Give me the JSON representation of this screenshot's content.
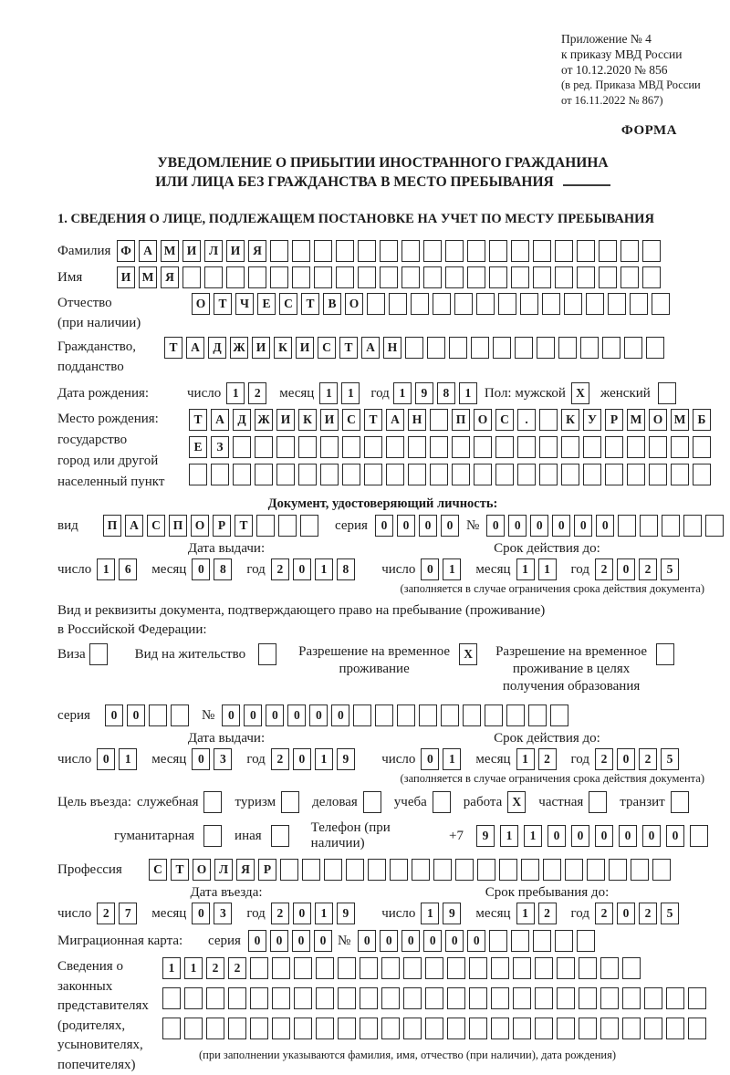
{
  "header": {
    "lines": [
      "Приложение № 4",
      "к приказу МВД России",
      "от 10.12.2020 № 856"
    ],
    "lines_small": [
      "(в ред. Приказа МВД России",
      "от 16.11.2022 № 867)"
    ],
    "form_label": "ФОРМА"
  },
  "title": {
    "line1": "УВЕДОМЛЕНИЕ О ПРИБЫТИИ ИНОСТРАННОГО ГРАЖДАНИНА",
    "line2": "ИЛИ ЛИЦА БЕЗ ГРАЖДАНСТВА В МЕСТО ПРЕБЫВАНИЯ"
  },
  "section1": "1. СВЕДЕНИЯ О ЛИЦЕ, ПОДЛЕЖАЩЕМ ПОСТАНОВКЕ НА УЧЕТ ПО МЕСТУ ПРЕБЫВАНИЯ",
  "rows": {
    "surname": {
      "label": "Фамилия",
      "value": "ФАМИЛИЯ",
      "cells": 25
    },
    "name": {
      "label": "Имя",
      "value": "ИМЯ",
      "cells": 25
    },
    "patronymic": {
      "label1": "Отчество",
      "label2": "(при наличии)",
      "value": "ОТЧЕСТВО",
      "cells": 22
    },
    "citizenship": {
      "label1": "Гражданство,",
      "label2": "подданство",
      "value": "ТАДЖИКИСТАН",
      "cells": 23
    }
  },
  "birth_date": {
    "label": "Дата рождения:",
    "day_label": "число",
    "day": {
      "value": "12",
      "cells": 2
    },
    "month_label": "месяц",
    "month": {
      "value": "11",
      "cells": 2
    },
    "year_label": "год",
    "year": {
      "value": "1981",
      "cells": 4
    },
    "sex_label": "Пол: мужской",
    "male_check": "X",
    "female_label": "женский",
    "female_check": ""
  },
  "birth_place": {
    "labels": [
      "Место рождения:",
      "государство",
      "город или другой",
      "населенный пункт"
    ],
    "row1": {
      "value": "ТАДЖИКИСТАН ПОС. КУРМОМБ",
      "cells": 24
    },
    "row2": {
      "value": "ЕЗ",
      "cells": 24
    },
    "row3": {
      "value": "",
      "cells": 24
    }
  },
  "identity_doc": {
    "heading": "Документ, удостоверяющий личность:",
    "vid_label": "вид",
    "vid": {
      "value": "ПАСПОРТ",
      "cells": 10
    },
    "seriya_label": "серия",
    "seriya": {
      "value": "0000",
      "cells": 4
    },
    "num_label": "№",
    "num": {
      "value": "000000",
      "cells": 11
    }
  },
  "issue1": {
    "head_left": "Дата выдачи:",
    "head_right": "Срок действия до:",
    "day_label": "число",
    "month_label": "месяц",
    "year_label": "год",
    "day": {
      "value": "16",
      "cells": 2
    },
    "month": {
      "value": "08",
      "cells": 2
    },
    "year": {
      "value": "2018",
      "cells": 4
    },
    "r_day": {
      "value": "01",
      "cells": 2
    },
    "r_month": {
      "value": "11",
      "cells": 2
    },
    "r_year": {
      "value": "2025",
      "cells": 4
    },
    "note": "(заполняется в случае ограничения срока действия документа)"
  },
  "resident_doc": {
    "line1": "Вид и реквизиты документа, подтверждающего право на пребывание (проживание)",
    "line2": "в Российской Федерации:",
    "visa_label": "Виза",
    "visa_check": "",
    "vzh_label": "Вид на жительство",
    "vzh_check": "",
    "rvp_l1": "Разрешение на временное",
    "rvp_l2": "проживание",
    "rvp_check": "X",
    "rvpedu_l1": "Разрешение на временное",
    "rvpedu_l2": "проживание в целях",
    "rvpedu_l3": "получения образования",
    "rvpedu_check": ""
  },
  "permit_num": {
    "seriya_label": "серия",
    "seriya": {
      "value": "00",
      "cells": 4
    },
    "num_label": "№",
    "num": {
      "value": "000000",
      "cells": 16
    }
  },
  "issue2": {
    "head_left": "Дата выдачи:",
    "head_right": "Срок действия до:",
    "day_label": "число",
    "month_label": "месяц",
    "year_label": "год",
    "day": {
      "value": "01",
      "cells": 2
    },
    "month": {
      "value": "03",
      "cells": 2
    },
    "year": {
      "value": "2019",
      "cells": 4
    },
    "r_day": {
      "value": "01",
      "cells": 2
    },
    "r_month": {
      "value": "12",
      "cells": 2
    },
    "r_year": {
      "value": "2025",
      "cells": 4
    },
    "note": "(заполняется в случае ограничения срока действия документа)"
  },
  "purpose": {
    "prefix": "Цель въезда:",
    "options": [
      {
        "label": "служебная",
        "check": ""
      },
      {
        "label": "туризм",
        "check": ""
      },
      {
        "label": "деловая",
        "check": ""
      },
      {
        "label": "учеба",
        "check": ""
      },
      {
        "label": "работа",
        "check": "X"
      },
      {
        "label": "частная",
        "check": ""
      },
      {
        "label": "транзит",
        "check": ""
      }
    ],
    "label_gum": "гуманитарная",
    "check_gum": "",
    "label_inaya": "иная",
    "check_inaya": "",
    "phone_label": "Телефон (при наличии)",
    "phone_prefix": "+7",
    "phone": {
      "value": "911000000",
      "cells": 10
    }
  },
  "profession": {
    "label": "Профессия",
    "value": "СТОЛЯР",
    "cells": 24
  },
  "entry": {
    "head_left": "Дата въезда:",
    "head_right": "Срок пребывания до:",
    "day_label": "число",
    "month_label": "месяц",
    "year_label": "год",
    "day": {
      "value": "27",
      "cells": 2
    },
    "month": {
      "value": "03",
      "cells": 2
    },
    "year": {
      "value": "2019",
      "cells": 4
    },
    "r_day": {
      "value": "19",
      "cells": 2
    },
    "r_month": {
      "value": "12",
      "cells": 2
    },
    "r_year": {
      "value": "2025",
      "cells": 4
    }
  },
  "migration_card": {
    "label": "Миграционная карта:",
    "seriya_label": "серия",
    "seriya": {
      "value": "0000",
      "cells": 4
    },
    "num_label": "№",
    "num": {
      "value": "000000",
      "cells": 11
    }
  },
  "legal_reps": {
    "labels": [
      "Сведения о",
      "законных",
      "представителях",
      "(родителях,",
      "усыновителях,",
      "попечителях)"
    ],
    "row1": {
      "value": "1122",
      "cells": 22
    },
    "row2": {
      "value": "",
      "cells": 25
    },
    "row3": {
      "value": "",
      "cells": 25
    },
    "note": "(при заполнении указываются фамилия, имя, отчество (при наличии), дата рождения)"
  }
}
